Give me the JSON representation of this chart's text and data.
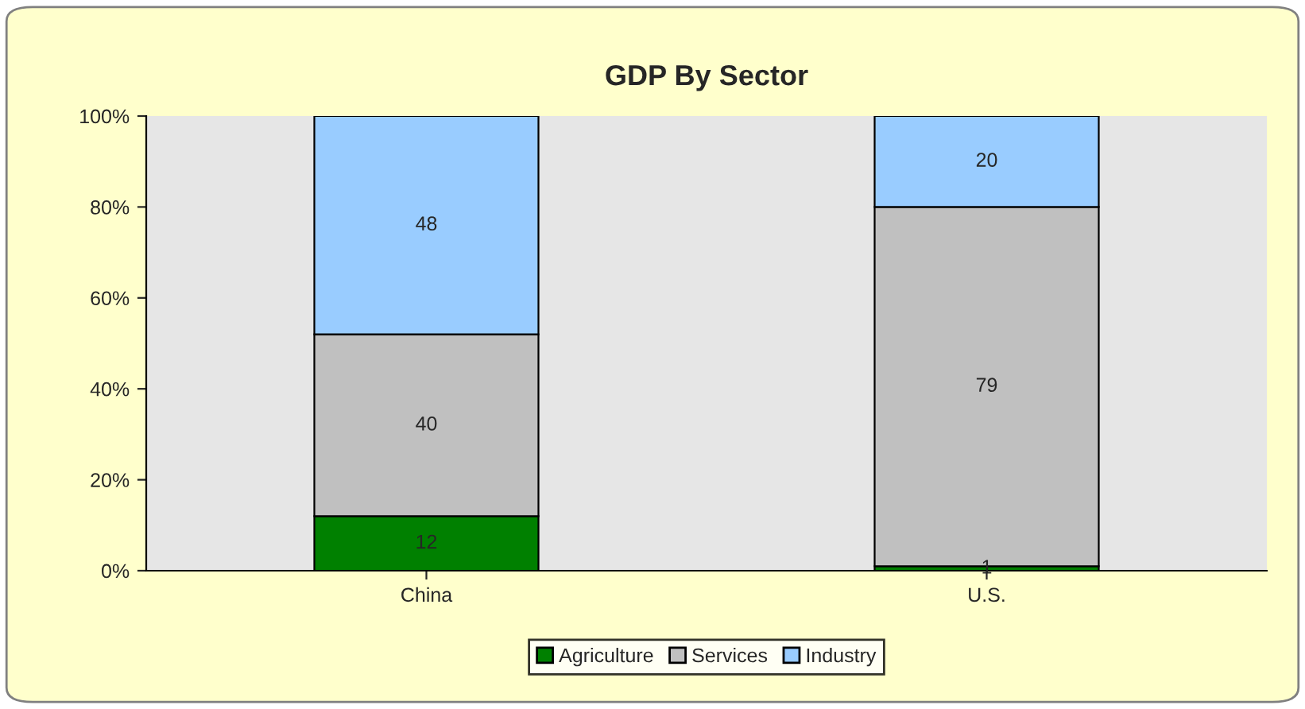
{
  "chart_data": {
    "type": "bar",
    "title": "GDP By Sector",
    "categories": [
      "China",
      "U.S."
    ],
    "stacked": true,
    "data_labels": true,
    "series": [
      {
        "name": "Agriculture",
        "color": "#008000",
        "values": [
          12,
          1
        ]
      },
      {
        "name": "Services",
        "color": "#c0c0c0",
        "values": [
          40,
          79
        ]
      },
      {
        "name": "Industry",
        "color": "#99ccff",
        "values": [
          48,
          20
        ]
      }
    ],
    "ylim": [
      0,
      100
    ],
    "yticks": [
      {
        "value": 0,
        "label": "0%"
      },
      {
        "value": 20,
        "label": "20%"
      },
      {
        "value": 40,
        "label": "40%"
      },
      {
        "value": 60,
        "label": "60%"
      },
      {
        "value": 80,
        "label": "80%"
      },
      {
        "value": 100,
        "label": "100%"
      }
    ],
    "grid": false,
    "legend": "bottom"
  }
}
